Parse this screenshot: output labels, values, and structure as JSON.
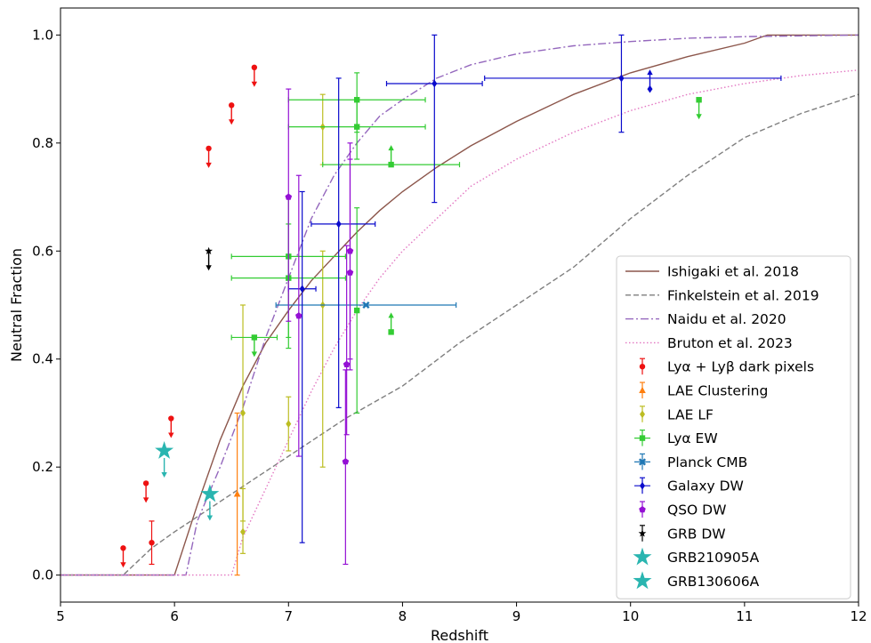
{
  "chart_data": {
    "type": "scatter",
    "xlabel": "Redshift",
    "ylabel": "Neutral Fraction",
    "xlim": [
      5,
      12
    ],
    "ylim": [
      -0.05,
      1.05
    ],
    "xticks": [
      5,
      6,
      7,
      8,
      9,
      10,
      11,
      12
    ],
    "yticks": [
      0.0,
      0.2,
      0.4,
      0.6,
      0.8,
      1.0
    ],
    "legend_position": "lower-right",
    "grid": false,
    "curves": [
      {
        "name": "Ishigaki et al. 2018",
        "color": "#8c564b",
        "dash": "solid",
        "x": [
          5.0,
          6.0,
          6.2,
          6.4,
          6.6,
          6.8,
          7.0,
          7.2,
          7.4,
          7.6,
          7.8,
          8.0,
          8.3,
          8.6,
          9.0,
          9.5,
          10.0,
          10.5,
          11.0,
          11.2,
          12.0
        ],
        "y": [
          0.0,
          0.0,
          0.13,
          0.25,
          0.35,
          0.43,
          0.49,
          0.545,
          0.59,
          0.635,
          0.675,
          0.71,
          0.755,
          0.795,
          0.84,
          0.89,
          0.93,
          0.96,
          0.985,
          1.0,
          1.0
        ]
      },
      {
        "name": "Finkelstein et al. 2019",
        "color": "#7f7f7f",
        "dash": "dashed",
        "x": [
          5.0,
          5.55,
          5.8,
          6.0,
          6.5,
          7.0,
          7.5,
          8.0,
          8.5,
          9.0,
          9.5,
          10.0,
          10.5,
          11.0,
          11.5,
          12.0
        ],
        "y": [
          0.0,
          0.0,
          0.05,
          0.08,
          0.15,
          0.22,
          0.29,
          0.35,
          0.43,
          0.5,
          0.57,
          0.66,
          0.74,
          0.81,
          0.855,
          0.89
        ]
      },
      {
        "name": "Naidu et al. 2020",
        "color": "#9467bd",
        "dash": "dashdot",
        "x": [
          5.0,
          6.1,
          6.2,
          6.4,
          6.6,
          6.8,
          7.0,
          7.2,
          7.4,
          7.6,
          7.8,
          8.0,
          8.3,
          8.6,
          9.0,
          9.5,
          10.0,
          10.5,
          11.0,
          12.0
        ],
        "y": [
          0.0,
          0.0,
          0.1,
          0.2,
          0.31,
          0.44,
          0.55,
          0.66,
          0.74,
          0.8,
          0.85,
          0.88,
          0.92,
          0.945,
          0.965,
          0.98,
          0.988,
          0.994,
          0.997,
          1.0
        ]
      },
      {
        "name": "Bruton et al. 2023",
        "color": "#e377c2",
        "dash": "dotted",
        "x": [
          5.0,
          6.5,
          6.6,
          6.8,
          7.0,
          7.2,
          7.4,
          7.6,
          7.8,
          8.0,
          8.3,
          8.6,
          9.0,
          9.5,
          10.0,
          10.5,
          11.0,
          11.5,
          12.0
        ],
        "y": [
          0.0,
          0.0,
          0.07,
          0.16,
          0.25,
          0.34,
          0.42,
          0.49,
          0.55,
          0.6,
          0.66,
          0.72,
          0.77,
          0.82,
          0.86,
          0.89,
          0.91,
          0.925,
          0.935
        ]
      }
    ],
    "series": [
      {
        "name": "Lyα + Lyβ dark pixels",
        "color": "#ee1111",
        "marker": "circle",
        "points": [
          {
            "x": 5.55,
            "y": 0.05,
            "upper": true
          },
          {
            "x": 5.75,
            "y": 0.17,
            "upper": true
          },
          {
            "x": 5.8,
            "y": 0.06,
            "yerr": [
              0.04,
              0.04
            ]
          },
          {
            "x": 5.97,
            "y": 0.29,
            "upper": true
          },
          {
            "x": 6.3,
            "y": 0.79,
            "upper": true
          },
          {
            "x": 6.5,
            "y": 0.87,
            "upper": true
          },
          {
            "x": 6.7,
            "y": 0.94,
            "upper": true
          }
        ]
      },
      {
        "name": "LAE Clustering",
        "color": "#ff7f0e",
        "marker": "triangle",
        "points": [
          {
            "x": 6.55,
            "y": 0.15,
            "yerr": [
              0.15,
              0.15
            ]
          }
        ]
      },
      {
        "name": "LAE LF",
        "color": "#bcbd22",
        "marker": "diamond",
        "points": [
          {
            "x": 6.6,
            "y": 0.08,
            "yerr": [
              0.04,
              0.08
            ]
          },
          {
            "x": 6.6,
            "y": 0.3,
            "yerr": [
              0.2,
              0.2
            ]
          },
          {
            "x": 7.0,
            "y": 0.28,
            "yerr": [
              0.05,
              0.05
            ]
          },
          {
            "x": 7.3,
            "y": 0.5,
            "yerr": [
              0.3,
              0.1
            ]
          },
          {
            "x": 7.3,
            "y": 0.83,
            "yerr": [
              0.07,
              0.06
            ]
          }
        ]
      },
      {
        "name": "Lyα EW",
        "color": "#33cc33",
        "marker": "square",
        "points": [
          {
            "x": 6.7,
            "y": 0.44,
            "xerr": [
              0.2,
              0.2
            ],
            "upper": true
          },
          {
            "x": 7.0,
            "y": 0.59,
            "xerr": [
              0.5,
              0.5
            ],
            "yerr": [
              0.15,
              0.11
            ]
          },
          {
            "x": 7.0,
            "y": 0.55,
            "xerr": [
              0.5,
              0.5
            ],
            "yerr": [
              0.13,
              0.1
            ]
          },
          {
            "x": 7.6,
            "y": 0.88,
            "xerr": [
              0.6,
              0.6
            ],
            "yerr": [
              0.06,
              0.05
            ]
          },
          {
            "x": 7.6,
            "y": 0.83,
            "xerr": [
              0.6,
              0.6
            ],
            "yerr": [
              0.06,
              0.05
            ]
          },
          {
            "x": 7.6,
            "y": 0.49,
            "yerr": [
              0.19,
              0.19
            ]
          },
          {
            "x": 7.9,
            "y": 0.76,
            "xerr": [
              0.6,
              0.6
            ],
            "lower": true
          },
          {
            "x": 7.9,
            "y": 0.45,
            "lower": true
          },
          {
            "x": 10.6,
            "y": 0.88,
            "upper": true
          }
        ]
      },
      {
        "name": "Planck CMB",
        "color": "#1f77b4",
        "marker": "x",
        "points": [
          {
            "x": 7.68,
            "y": 0.5,
            "xerr": [
              0.79,
              0.79
            ]
          }
        ]
      },
      {
        "name": "Galaxy DW",
        "color": "#0a0acc",
        "marker": "diamond",
        "points": [
          {
            "x": 7.12,
            "y": 0.53,
            "xerr": [
              0.12,
              0.12
            ],
            "yerr": [
              0.47,
              0.18
            ]
          },
          {
            "x": 7.44,
            "y": 0.65,
            "xerr": [
              0.24,
              0.32
            ],
            "yerr": [
              0.34,
              0.27
            ]
          },
          {
            "x": 8.28,
            "y": 0.91,
            "xerr": [
              0.42,
              0.42
            ],
            "yerr": [
              0.22,
              0.09
            ]
          },
          {
            "x": 9.92,
            "y": 0.92,
            "xerr": [
              1.2,
              1.4
            ],
            "yerr": [
              0.1,
              0.08
            ]
          },
          {
            "x": 10.17,
            "y": 0.9,
            "lower": true
          }
        ]
      },
      {
        "name": "QSO DW",
        "color": "#9410d4",
        "marker": "pentagon",
        "points": [
          {
            "x": 7.0,
            "y": 0.7,
            "yerr": [
              0.23,
              0.2
            ]
          },
          {
            "x": 7.09,
            "y": 0.48,
            "yerr": [
              0.26,
              0.26
            ]
          },
          {
            "x": 7.5,
            "y": 0.21,
            "yerr": [
              0.19,
              0.17
            ]
          },
          {
            "x": 7.51,
            "y": 0.39,
            "yerr": [
              0.13,
              0.22
            ]
          },
          {
            "x": 7.54,
            "y": 0.6,
            "yerr": [
              0.2,
              0.2
            ]
          },
          {
            "x": 7.54,
            "y": 0.56,
            "yerr": [
              0.18,
              0.21
            ]
          }
        ]
      },
      {
        "name": "GRB DW",
        "color": "#000000",
        "marker": "star",
        "points": [
          {
            "x": 6.3,
            "y": 0.6,
            "upper": true
          }
        ]
      },
      {
        "name": "GRB210905A",
        "color": "#2ab5b0",
        "marker": "bigstar",
        "points": [
          {
            "x": 5.91,
            "y": 0.23,
            "upper": true
          }
        ]
      },
      {
        "name": "GRB130606A",
        "color": "#2ab5b0",
        "marker": "bigstar",
        "points": [
          {
            "x": 6.31,
            "y": 0.15,
            "upper": true
          }
        ]
      }
    ]
  }
}
